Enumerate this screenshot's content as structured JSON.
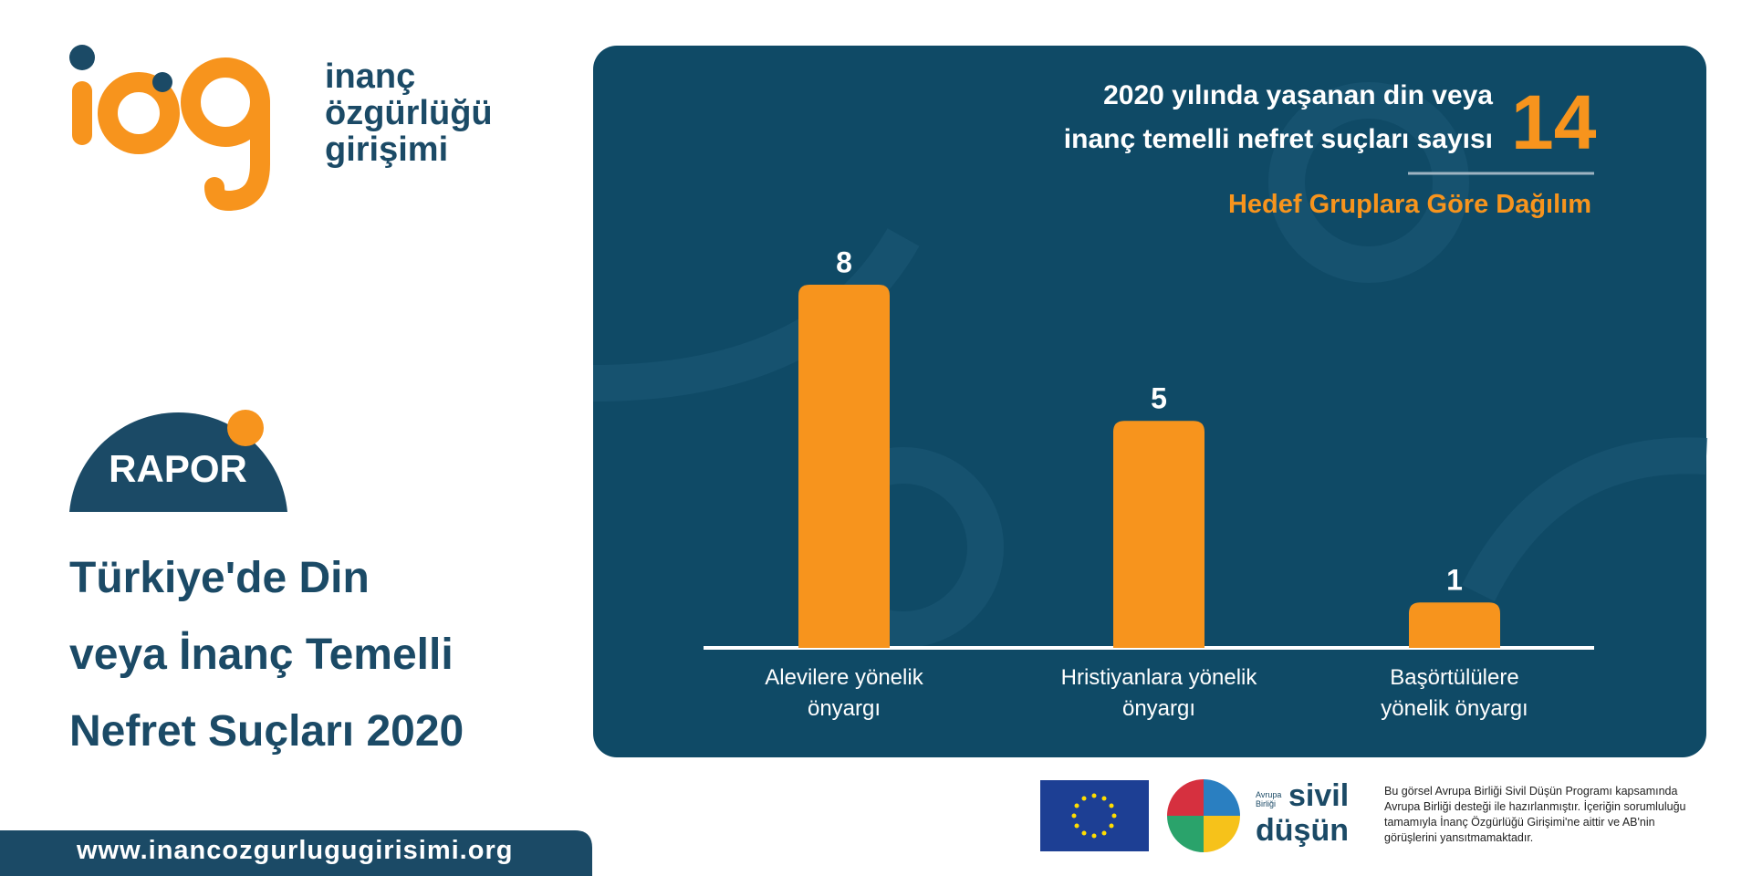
{
  "logo": {
    "lines": [
      "inanç",
      "özgürlüğü",
      "girişimi"
    ]
  },
  "badge": "RAPOR",
  "report_title": [
    "Türkiye'de Din",
    "veya İnanç Temelli",
    "Nefret Suçları 2020"
  ],
  "website": "www.inancozgurlugugirisimi.org",
  "chart_data": {
    "type": "bar",
    "title": [
      "2020 yılında yaşanan din veya",
      "inanç temelli nefret suçları sayısı"
    ],
    "total": 14,
    "subtitle": "Hedef Gruplara Göre Dağılım",
    "categories": [
      "Alevilere yönelik önyargı",
      "Hristiyanlara yönelik önyargı",
      "Başörtülülere yönelik önyargı"
    ],
    "values": [
      8,
      5,
      1
    ],
    "color": "#f7941d"
  },
  "footer": {
    "sponsor": {
      "small": "Avrupa Birliği",
      "name": [
        "sivil",
        "düşün"
      ]
    },
    "disclaimer": [
      "Bu görsel Avrupa Birliği Sivil Düşün Programı kapsamında",
      "Avrupa Birliği desteği ile hazırlanmıştır. İçeriğin sorumluluğu",
      "tamamıyla İnanç Özgürlüğü Girişimi'ne aittir ve AB'nin",
      "görüşlerini yansıtmamaktadır."
    ]
  }
}
